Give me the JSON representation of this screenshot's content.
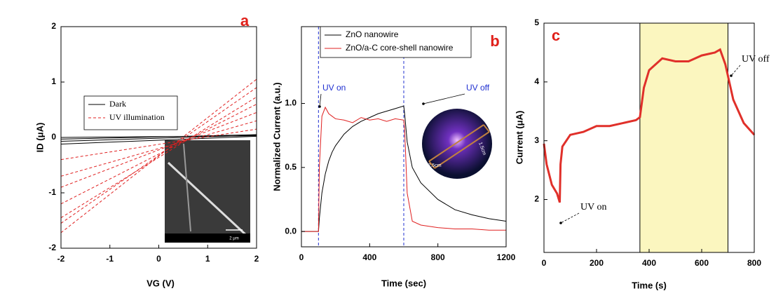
{
  "chart_data": [
    {
      "type": "line",
      "label": "a",
      "xlabel": "VG (V)",
      "ylabel": "ID (μA)",
      "x": [
        -2,
        2
      ],
      "xlim": [
        -2,
        2
      ],
      "ylim": [
        -2,
        2
      ],
      "xticks": [
        -2,
        -1,
        0,
        1,
        2
      ],
      "yticks": [
        -2,
        -1,
        0,
        1,
        2
      ],
      "legend": "upper left",
      "inset_label": "2 μm",
      "series": [
        {
          "name": "Dark",
          "color": "#000000",
          "dash": false,
          "values": [
            -0.12,
            0.02
          ]
        },
        {
          "color": "#000000",
          "dash": false,
          "values": [
            -0.07,
            0.04
          ]
        },
        {
          "color": "#000000",
          "dash": false,
          "values": [
            -0.03,
            0.05
          ]
        },
        {
          "color": "#000000",
          "dash": false,
          "values": [
            0,
            0.03
          ]
        },
        {
          "name": "UV illumination",
          "color": "#e02020",
          "dash": true,
          "values": [
            -1.72,
            1.05
          ]
        },
        {
          "color": "#e02020",
          "dash": true,
          "values": [
            -1.55,
            0.9
          ]
        },
        {
          "color": "#e02020",
          "dash": true,
          "values": [
            -1.45,
            0.73
          ]
        },
        {
          "color": "#e02020",
          "dash": true,
          "values": [
            -1.2,
            0.6
          ]
        },
        {
          "color": "#e02020",
          "dash": true,
          "values": [
            -0.9,
            0.45
          ]
        },
        {
          "color": "#e02020",
          "dash": true,
          "values": [
            -0.7,
            0.3
          ]
        },
        {
          "color": "#e02020",
          "dash": true,
          "values": [
            -0.4,
            0.15
          ]
        }
      ]
    },
    {
      "type": "line",
      "label": "b",
      "xlabel": "Time (sec)",
      "ylabel": "Normalized Current (a.u.)",
      "x": [
        0,
        100,
        105,
        120,
        140,
        160,
        180,
        200,
        250,
        300,
        350,
        400,
        450,
        500,
        550,
        600,
        605,
        620,
        650,
        700,
        800,
        900,
        1000,
        1100,
        1200
      ],
      "xlim": [
        0,
        1200
      ],
      "ylim": [
        -0.12,
        1.6
      ],
      "xticks": [
        0,
        400,
        800,
        1200
      ],
      "yticks": [
        {
          "value": 0,
          "label": "0.0"
        },
        {
          "value": 0.5,
          "label": "0.5"
        },
        {
          "value": 1,
          "label": "1.0"
        }
      ],
      "legend": "upper left",
      "vlines": [
        100,
        600
      ],
      "vline_color": "#2030d0",
      "annotations": [
        "UV on",
        "UV off"
      ],
      "inset_labels": [
        "2.5cm",
        "1.5cm"
      ],
      "series": [
        {
          "name": "ZnO nanowire",
          "color": "#000000",
          "dash": false,
          "values": [
            0,
            0,
            0.1,
            0.3,
            0.45,
            0.55,
            0.62,
            0.67,
            0.76,
            0.82,
            0.86,
            0.89,
            0.92,
            0.94,
            0.96,
            0.98,
            0.92,
            0.7,
            0.5,
            0.38,
            0.25,
            0.17,
            0.13,
            0.1,
            0.08
          ]
        },
        {
          "name": "ZnO/a-C core-shell nanowire",
          "color": "#e02020",
          "dash": false,
          "values": [
            0,
            0,
            0.5,
            0.9,
            0.97,
            0.92,
            0.9,
            0.88,
            0.87,
            0.85,
            0.89,
            0.87,
            0.88,
            0.86,
            0.88,
            0.87,
            0.8,
            0.3,
            0.08,
            0.05,
            0.03,
            0.02,
            0.02,
            0.01,
            0.01
          ]
        }
      ]
    },
    {
      "type": "line",
      "label": "c",
      "xlabel": "Time (s)",
      "ylabel": "Current (μA)",
      "x": [
        0,
        10,
        30,
        50,
        60,
        63,
        70,
        100,
        150,
        200,
        250,
        300,
        350,
        365,
        380,
        400,
        450,
        500,
        550,
        600,
        650,
        670,
        690,
        720,
        760,
        800
      ],
      "xlim": [
        0,
        800
      ],
      "ylim": [
        1.1,
        5
      ],
      "xticks": [
        0,
        200,
        400,
        600,
        800
      ],
      "yticks": [
        2,
        3,
        4,
        5
      ],
      "highlight": [
        365,
        700
      ],
      "highlight_color": "#fbf6bf",
      "annotations": [
        "UV on",
        "UV off"
      ],
      "series": [
        {
          "color": "#e0302a",
          "dash": false,
          "width": 3,
          "values": [
            2.95,
            2.6,
            2.25,
            2.1,
            1.95,
            2.6,
            2.9,
            3.1,
            3.15,
            3.25,
            3.25,
            3.3,
            3.35,
            3.4,
            3.9,
            4.2,
            4.4,
            4.35,
            4.35,
            4.45,
            4.5,
            4.55,
            4.3,
            3.7,
            3.3,
            3.1
          ]
        }
      ]
    }
  ]
}
